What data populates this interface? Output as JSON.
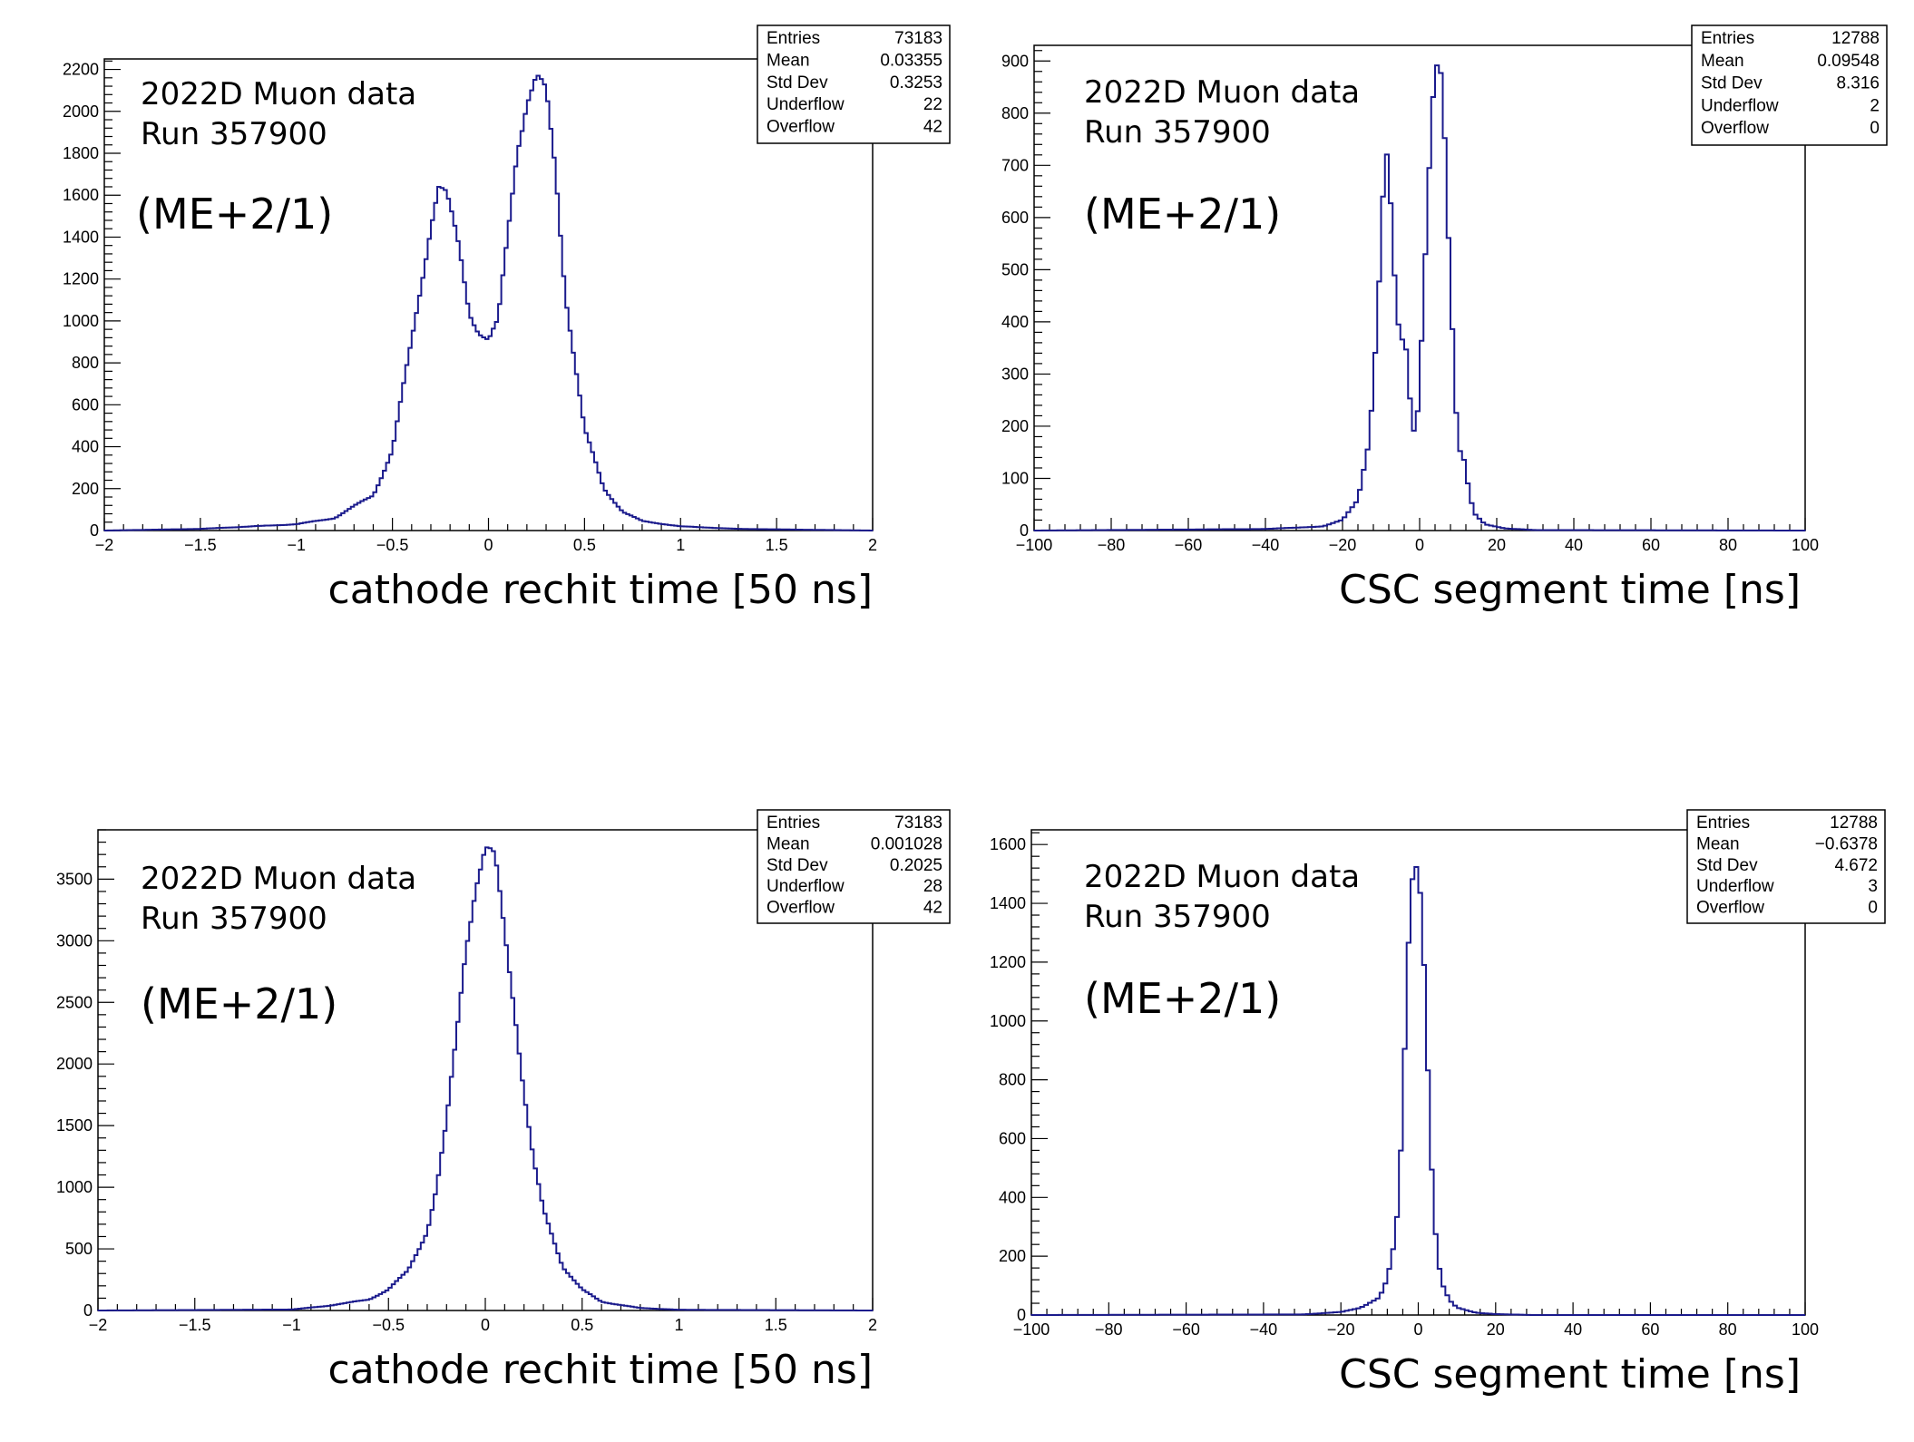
{
  "chart_data": [
    {
      "type": "histogram",
      "annotation_lines": [
        "2022D Muon data",
        "Run 357900"
      ],
      "station_label": "(ME+2/1)",
      "xlabel": "cathode rechit time [50 ns]",
      "xlim": [
        -2,
        2
      ],
      "ylim": [
        0,
        2250
      ],
      "x_ticks": [
        -2,
        -1.5,
        -1,
        -0.5,
        0,
        0.5,
        1,
        1.5,
        2
      ],
      "x_tick_labels": [
        "−2",
        "−1.5",
        "−1",
        "−0.5",
        "0",
        "0.5",
        "1",
        "1.5",
        "2"
      ],
      "y_ticks": [
        0,
        200,
        400,
        600,
        800,
        1000,
        1200,
        1400,
        1600,
        1800,
        2000,
        2200
      ],
      "stats": [
        {
          "label": "Entries",
          "value": "73183"
        },
        {
          "label": "Mean",
          "value": "0.03355"
        },
        {
          "label": "Std Dev",
          "value": "0.3253"
        },
        {
          "label": "Underflow",
          "value": "22"
        },
        {
          "label": "Overflow",
          "value": "42"
        }
      ],
      "line_color": "#1a1a8c",
      "profile": {
        "x": [
          -2,
          -1.5,
          -1,
          -0.8,
          -0.6,
          -0.5,
          -0.4,
          -0.3,
          -0.26,
          -0.22,
          -0.15,
          -0.1,
          -0.05,
          0,
          0.05,
          0.1,
          0.15,
          0.2,
          0.25,
          0.3,
          0.35,
          0.4,
          0.5,
          0.6,
          0.7,
          0.8,
          1.0,
          1.3,
          2
        ],
        "y": [
          0,
          8,
          30,
          60,
          170,
          380,
          900,
          1480,
          1640,
          1580,
          1330,
          1060,
          960,
          900,
          980,
          1400,
          1850,
          2080,
          2150,
          2050,
          1700,
          1150,
          480,
          200,
          90,
          45,
          20,
          8,
          0
        ]
      },
      "bins": 240
    },
    {
      "type": "histogram",
      "annotation_lines": [
        "2022D Muon data",
        "Run 357900"
      ],
      "station_label": "(ME+2/1)",
      "xlabel": "CSC segment time [ns]",
      "xlim": [
        -100,
        100
      ],
      "ylim": [
        0,
        930
      ],
      "x_ticks": [
        -100,
        -80,
        -60,
        -40,
        -20,
        0,
        20,
        40,
        60,
        80,
        100
      ],
      "x_tick_labels": [
        "−100",
        "−80",
        "−60",
        "−40",
        "−20",
        "0",
        "20",
        "40",
        "60",
        "80",
        "100"
      ],
      "y_ticks": [
        0,
        100,
        200,
        300,
        400,
        500,
        600,
        700,
        800,
        900
      ],
      "stats": [
        {
          "label": "Entries",
          "value": "12788"
        },
        {
          "label": "Mean",
          "value": "0.09548"
        },
        {
          "label": "Std Dev",
          "value": "8.316"
        },
        {
          "label": "Underflow",
          "value": "2"
        },
        {
          "label": "Overflow",
          "value": "0"
        }
      ],
      "line_color": "#1a1a8c",
      "profile": {
        "x": [
          -100,
          -40,
          -25,
          -20,
          -16,
          -13,
          -11,
          -9,
          -8,
          -7,
          -5,
          -4,
          -3,
          -2,
          -1,
          0,
          1,
          2,
          3,
          4,
          5,
          6,
          7,
          8,
          9,
          10,
          11,
          12,
          14,
          17,
          22,
          30,
          100
        ],
        "y": [
          0,
          3,
          8,
          20,
          60,
          180,
          400,
          710,
          700,
          520,
          340,
          380,
          310,
          200,
          190,
          280,
          470,
          620,
          800,
          880,
          900,
          830,
          640,
          450,
          300,
          140,
          160,
          110,
          35,
          12,
          4,
          1,
          0
        ]
      },
      "bins": 200
    },
    {
      "type": "histogram",
      "annotation_lines": [
        "2022D Muon data",
        "Run 357900"
      ],
      "station_label": "(ME+2/1)",
      "xlabel": "cathode rechit time [50 ns]",
      "xlim": [
        -2,
        2
      ],
      "ylim": [
        0,
        3900
      ],
      "x_ticks": [
        -2,
        -1.5,
        -1,
        -0.5,
        0,
        0.5,
        1,
        1.5,
        2
      ],
      "x_tick_labels": [
        "−2",
        "−1.5",
        "−1",
        "−0.5",
        "0",
        "0.5",
        "1",
        "1.5",
        "2"
      ],
      "y_ticks": [
        0,
        500,
        1000,
        1500,
        2000,
        2500,
        3000,
        3500
      ],
      "stats": [
        {
          "label": "Entries",
          "value": "73183"
        },
        {
          "label": "Mean",
          "value": "0.001028"
        },
        {
          "label": "Std Dev",
          "value": "0.2025"
        },
        {
          "label": "Underflow",
          "value": "28"
        },
        {
          "label": "Overflow",
          "value": "42"
        }
      ],
      "line_color": "#1a1a8c",
      "profile": {
        "x": [
          -2,
          -1,
          -0.8,
          -0.6,
          -0.5,
          -0.4,
          -0.3,
          -0.25,
          -0.2,
          -0.15,
          -0.1,
          -0.05,
          0,
          0.05,
          0.1,
          0.15,
          0.2,
          0.25,
          0.3,
          0.4,
          0.5,
          0.6,
          0.8,
          1.0,
          2
        ],
        "y": [
          0,
          8,
          40,
          90,
          170,
          320,
          650,
          1000,
          1500,
          2200,
          3000,
          3500,
          3720,
          3600,
          3050,
          2500,
          1800,
          1200,
          800,
          360,
          170,
          70,
          20,
          6,
          0
        ]
      },
      "bins": 240
    },
    {
      "type": "histogram",
      "annotation_lines": [
        "2022D Muon data",
        "Run 357900"
      ],
      "station_label": "(ME+2/1)",
      "xlabel": "CSC segment time [ns]",
      "xlim": [
        -100,
        100
      ],
      "ylim": [
        0,
        1650
      ],
      "x_ticks": [
        -100,
        -80,
        -60,
        -40,
        -20,
        0,
        20,
        40,
        60,
        80,
        100
      ],
      "x_tick_labels": [
        "−100",
        "−80",
        "−60",
        "−40",
        "−20",
        "0",
        "20",
        "40",
        "60",
        "80",
        "100"
      ],
      "y_ticks": [
        0,
        200,
        400,
        600,
        800,
        1000,
        1200,
        1400,
        1600
      ],
      "stats": [
        {
          "label": "Entries",
          "value": "12788"
        },
        {
          "label": "Mean",
          "value": "−0.6378"
        },
        {
          "label": "Std Dev",
          "value": "4.672"
        },
        {
          "label": "Underflow",
          "value": "3"
        },
        {
          "label": "Overflow",
          "value": "0"
        }
      ],
      "line_color": "#1a1a8c",
      "profile": {
        "x": [
          -100,
          -30,
          -20,
          -15,
          -10,
          -8,
          -6,
          -5,
          -4,
          -3,
          -2,
          -1,
          0,
          1,
          2,
          3,
          4,
          5,
          6,
          8,
          10,
          15,
          20,
          30,
          100
        ],
        "y": [
          0,
          2,
          10,
          25,
          60,
          120,
          250,
          400,
          700,
          1100,
          1450,
          1570,
          1560,
          1400,
          1050,
          650,
          350,
          200,
          110,
          50,
          25,
          8,
          3,
          0,
          0
        ]
      },
      "bins": 200
    }
  ]
}
